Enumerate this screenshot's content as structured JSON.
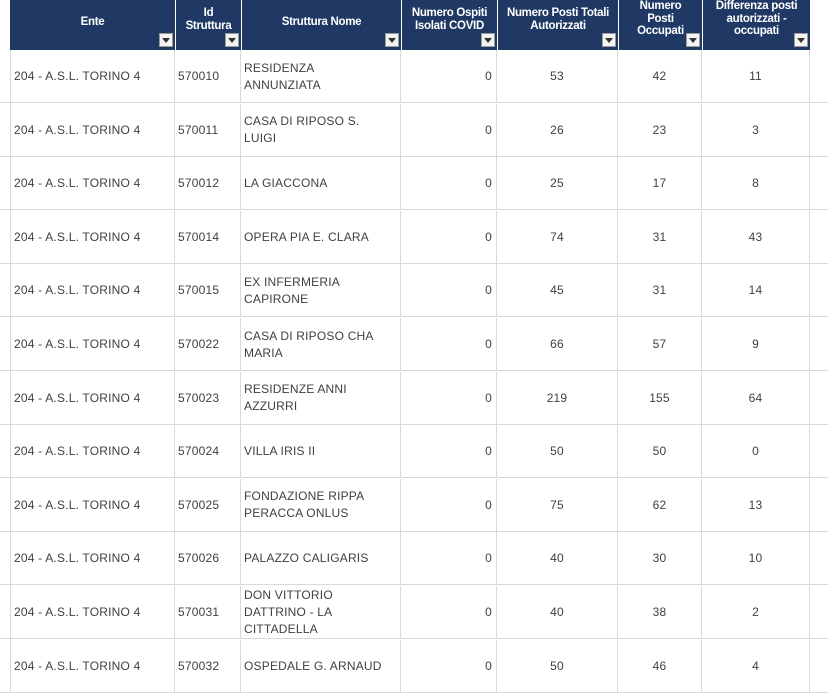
{
  "header": {
    "ente": "Ente",
    "id_struttura": "Id\nStruttura",
    "struttura_nome": "Struttura Nome",
    "ospiti_isolati": "Numero Ospiti\nIsolati COVID",
    "posti_totali": "Numero Posti Totali\nAutorizzati",
    "posti_occupati": "Numero\nPosti\nOccupati",
    "differenza": "Differenza posti\nautorizzati -\noccupati"
  },
  "rows": [
    {
      "ente": "204 - A.S.L. TORINO 4",
      "id": "570010",
      "nome": "RESIDENZA\nANNUNZIATA",
      "isolati": "0",
      "totali": "53",
      "occupati": "42",
      "differenza": "11"
    },
    {
      "ente": "204 - A.S.L. TORINO 4",
      "id": "570011",
      "nome": "CASA DI RIPOSO S.\nLUIGI",
      "isolati": "0",
      "totali": "26",
      "occupati": "23",
      "differenza": "3"
    },
    {
      "ente": "204 - A.S.L. TORINO 4",
      "id": "570012",
      "nome": "LA GIACCONA",
      "isolati": "0",
      "totali": "25",
      "occupati": "17",
      "differenza": "8"
    },
    {
      "ente": "204 - A.S.L. TORINO 4",
      "id": "570014",
      "nome": "OPERA PIA E. CLARA",
      "isolati": "0",
      "totali": "74",
      "occupati": "31",
      "differenza": "43"
    },
    {
      "ente": "204 - A.S.L. TORINO 4",
      "id": "570015",
      "nome": "EX INFERMERIA\nCAPIRONE",
      "isolati": "0",
      "totali": "45",
      "occupati": "31",
      "differenza": "14"
    },
    {
      "ente": "204 - A.S.L. TORINO 4",
      "id": "570022",
      "nome": "CASA DI RIPOSO CHA\nMARIA",
      "isolati": "0",
      "totali": "66",
      "occupati": "57",
      "differenza": "9"
    },
    {
      "ente": "204 - A.S.L. TORINO 4",
      "id": "570023",
      "nome": "RESIDENZE ANNI\nAZZURRI",
      "isolati": "0",
      "totali": "219",
      "occupati": "155",
      "differenza": "64"
    },
    {
      "ente": "204 - A.S.L. TORINO 4",
      "id": "570024",
      "nome": "VILLA IRIS II",
      "isolati": "0",
      "totali": "50",
      "occupati": "50",
      "differenza": "0"
    },
    {
      "ente": "204 - A.S.L. TORINO 4",
      "id": "570025",
      "nome": "FONDAZIONE RIPPA\nPERACCA ONLUS",
      "isolati": "0",
      "totali": "75",
      "occupati": "62",
      "differenza": "13"
    },
    {
      "ente": "204 - A.S.L. TORINO 4",
      "id": "570026",
      "nome": "PALAZZO CALIGARIS",
      "isolati": "0",
      "totali": "40",
      "occupati": "30",
      "differenza": "10"
    },
    {
      "ente": "204 - A.S.L. TORINO 4",
      "id": "570031",
      "nome": "DON VITTORIO\nDATTRINO - LA\nCITTADELLA",
      "isolati": "0",
      "totali": "40",
      "occupati": "38",
      "differenza": "2"
    },
    {
      "ente": "204 - A.S.L. TORINO 4",
      "id": "570032",
      "nome": "OSPEDALE G. ARNAUD",
      "isolati": "0",
      "totali": "50",
      "occupati": "46",
      "differenza": "4"
    }
  ],
  "colors": {
    "header_bg": "#1f3864",
    "header_text": "#ffffff",
    "grid": "#d9d9d9"
  },
  "icons": {
    "filter": "dropdown-filter-icon"
  }
}
